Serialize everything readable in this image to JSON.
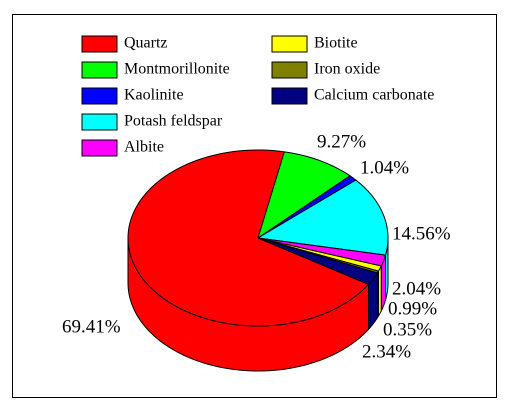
{
  "chart_data": {
    "type": "pie",
    "categories": [
      "Quartz",
      "Montmorillonite",
      "Kaolinite",
      "Potash feldspar",
      "Albite",
      "Biotite",
      "Iron oxide",
      "Calcium carbonate"
    ],
    "values": [
      69.41,
      9.27,
      1.04,
      14.56,
      2.04,
      0.99,
      0.35,
      2.34
    ],
    "value_labels": [
      "69.41%",
      "9.27%",
      "1.04%",
      "14.56%",
      "2.04%",
      "0.99%",
      "0.35%",
      "2.34%"
    ],
    "colors": [
      "#ff0000",
      "#00ff00",
      "#0000ff",
      "#00ffff",
      "#ff00ff",
      "#ffff00",
      "#808000",
      "#000080"
    ],
    "legend": "top"
  }
}
